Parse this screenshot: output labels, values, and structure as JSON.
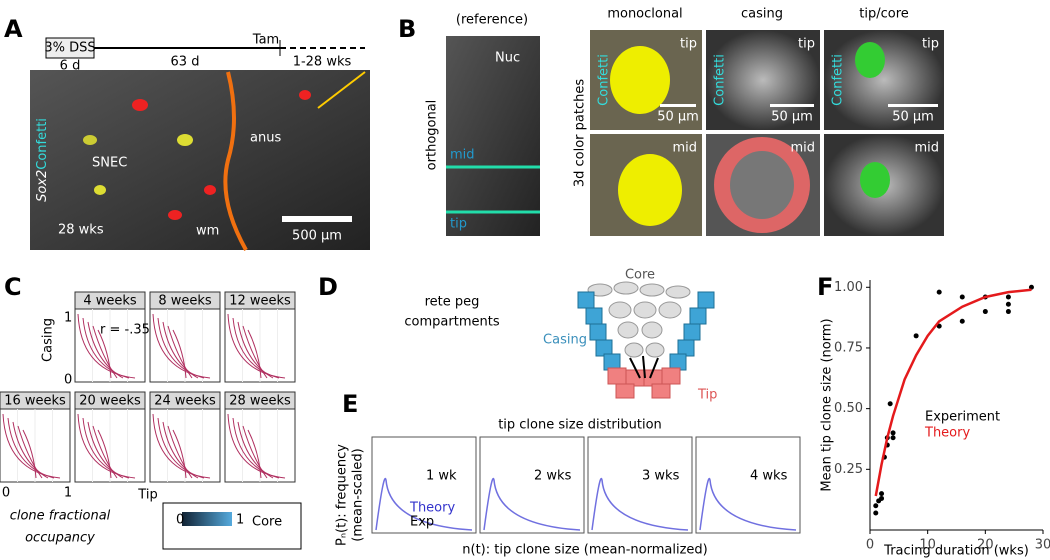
{
  "panels": {
    "A": {
      "label": "A",
      "timeline": [
        "3% DSS",
        "6 d",
        "63 d",
        "Tam",
        "1-28 wks"
      ],
      "stain": [
        "Sox2",
        "Confetti"
      ],
      "annotations": [
        "SNEC",
        "anus",
        "wm",
        "28 wks"
      ],
      "scale_bar": "500 µm"
    },
    "B": {
      "label": "B",
      "reference": "(reference)",
      "nuc": "Nuc",
      "orthogonal": "orthogonal",
      "lines": [
        "mid",
        "tip"
      ],
      "columns": [
        "monoclonal",
        "casing",
        "tip/core"
      ],
      "row_label": "3d color patches",
      "tags": [
        "tip",
        "tip",
        "tip",
        "mid",
        "mid",
        "mid"
      ],
      "stain": "Confetti",
      "scale_bar": "50 µm"
    },
    "C": {
      "label": "C",
      "titles": [
        "4 weeks",
        "8 weeks",
        "12 weeks",
        "16 weeks",
        "20 weeks",
        "24 weeks",
        "28 weeks"
      ],
      "ylabel": "Casing",
      "xlabel": "Tip",
      "r": "r = -.35",
      "yticks": [
        "1",
        "0"
      ],
      "xticks": [
        "0",
        "1"
      ],
      "caption": [
        "clone fractional",
        "occupancy"
      ],
      "colorbar": [
        "0",
        "1",
        "Core"
      ]
    },
    "D": {
      "label": "D",
      "title": [
        "rete peg",
        "compartments"
      ],
      "regions": [
        "Core",
        "Casing",
        "Tip"
      ]
    },
    "E": {
      "label": "E",
      "title": "tip clone size distribution",
      "panels": [
        "1 wk",
        "2 wks",
        "3 wks",
        "4 wks"
      ],
      "legend": [
        "Theory",
        "Exp"
      ],
      "ylabel": [
        "Pₙ(t): frequency",
        "(mean-scaled)"
      ],
      "xlabel": "n(t): tip clone size (mean-normalized)"
    }
  },
  "chart_data": {
    "type": "scatter",
    "panel_label": "F",
    "xlabel": "Tracing duration (wks)",
    "ylabel": "Mean tip clone size (norm)",
    "xlim": [
      0,
      30
    ],
    "xticks": [
      0,
      10,
      20,
      30
    ],
    "ylim": [
      0,
      1.03
    ],
    "yticks": [
      {
        "value": 0.25,
        "label": "0.25"
      },
      {
        "value": 0.5,
        "label": "0.50"
      },
      {
        "value": 0.75,
        "label": "0.75"
      },
      {
        "value": 1,
        "label": "1.00"
      }
    ],
    "series": [
      {
        "name": "Experiment",
        "type": "scatter",
        "color": "#000000",
        "x": [
          1,
          1,
          1.5,
          2,
          2,
          2.5,
          3,
          3,
          3.5,
          4,
          4,
          8,
          12,
          12,
          16,
          16,
          20,
          20,
          24,
          24,
          24,
          28
        ],
        "values": [
          0.07,
          0.1,
          0.12,
          0.15,
          0.13,
          0.3,
          0.35,
          0.38,
          0.52,
          0.4,
          0.38,
          0.8,
          0.84,
          0.98,
          0.86,
          0.96,
          0.9,
          0.96,
          0.9,
          0.93,
          0.96,
          1.0
        ]
      },
      {
        "name": "Theory",
        "type": "line",
        "color": "#e41a1c",
        "x": [
          1,
          2,
          3,
          4,
          6,
          8,
          10,
          12,
          16,
          20,
          24,
          28
        ],
        "values": [
          0.14,
          0.27,
          0.38,
          0.47,
          0.62,
          0.72,
          0.8,
          0.86,
          0.92,
          0.96,
          0.98,
          0.99
        ]
      }
    ]
  }
}
